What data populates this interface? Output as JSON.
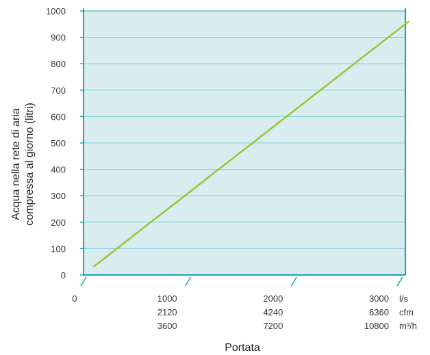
{
  "chart_data": {
    "type": "line",
    "title": "",
    "xlabel": "Portata",
    "ylabel_lines": [
      "Acqua nella rete di aria",
      "compressa al giorno (litri)"
    ],
    "xlim": [
      0,
      3000
    ],
    "ylim": [
      0,
      1000
    ],
    "y_ticks": [
      0,
      100,
      200,
      300,
      400,
      500,
      600,
      700,
      800,
      900,
      1000
    ],
    "x_tick_zero": "0",
    "x_ticks": [
      {
        "value": 1000,
        "labels": [
          "1000",
          "2120",
          "3600"
        ]
      },
      {
        "value": 2000,
        "labels": [
          "2000",
          "4240",
          "7200"
        ]
      },
      {
        "value": 3000,
        "labels": [
          "3000",
          "6360",
          "10800"
        ]
      }
    ],
    "x_units": [
      "l/s",
      "cfm",
      "m³/h"
    ],
    "grid": true,
    "series": [
      {
        "x": [
          100,
          3070
        ],
        "y": [
          33,
          960
        ]
      }
    ],
    "colors": {
      "plot_bg": "#d9edf0",
      "frame": "#1aa3b3",
      "grid": "#7fcfd8",
      "line": "#9dc430"
    }
  }
}
